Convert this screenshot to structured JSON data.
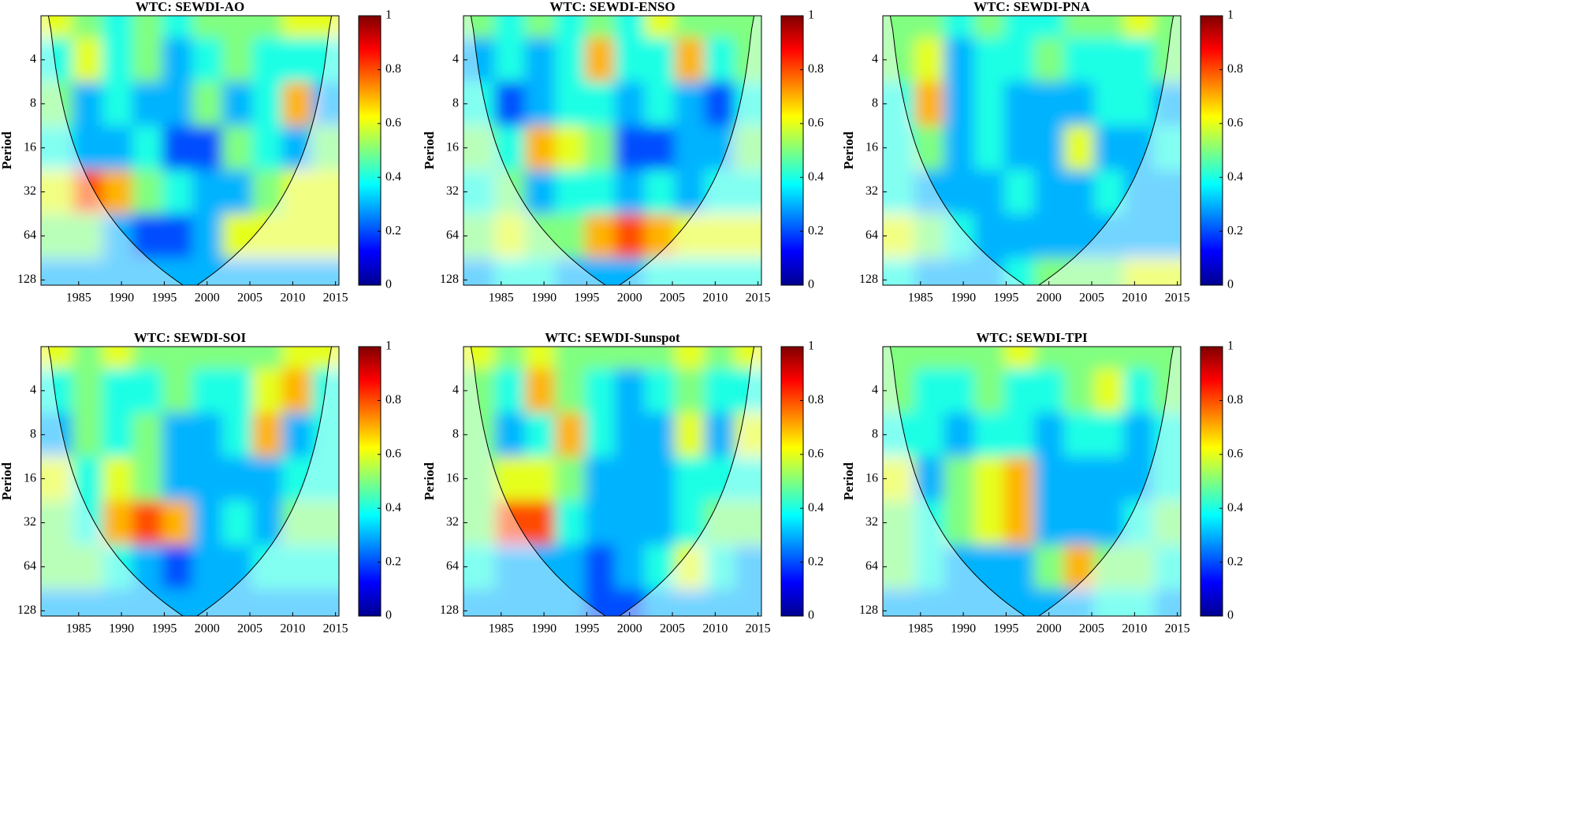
{
  "chart_data": [
    {
      "type": "heatmap",
      "title": "WTC: SEWDI-AO",
      "ylabel": "Period",
      "ylog": true,
      "colormap": "jet",
      "xlim": [
        1980.6,
        2015.4
      ],
      "xticks": [
        1985,
        1990,
        1995,
        2000,
        2005,
        2010,
        2015
      ],
      "ylim": [
        2,
        139
      ],
      "yticks": [
        4,
        8,
        16,
        32,
        64,
        128
      ],
      "x": [
        1982.5,
        1986,
        1989.5,
        1993,
        1996.5,
        2000,
        2003.5,
        2007,
        2010.5,
        2014
      ],
      "y": [
        2,
        4,
        8,
        16,
        32,
        64,
        128
      ],
      "z": [
        [
          0.6,
          0.5,
          0.4,
          0.5,
          0.4,
          0.5,
          0.5,
          0.5,
          0.6,
          0.6
        ],
        [
          0.4,
          0.6,
          0.4,
          0.5,
          0.3,
          0.4,
          0.5,
          0.4,
          0.4,
          0.4
        ],
        [
          0.5,
          0.3,
          0.4,
          0.3,
          0.3,
          0.5,
          0.3,
          0.4,
          0.7,
          0.3
        ],
        [
          0.4,
          0.3,
          0.3,
          0.4,
          0.2,
          0.2,
          0.5,
          0.4,
          0.3,
          0.5
        ],
        [
          0.6,
          0.8,
          0.7,
          0.5,
          0.4,
          0.3,
          0.3,
          0.5,
          0.6,
          0.6
        ],
        [
          0.5,
          0.5,
          0.3,
          0.2,
          0.2,
          0.3,
          0.6,
          0.6,
          0.6,
          0.6
        ],
        [
          0.3,
          0.3,
          0.3,
          0.3,
          0.3,
          0.3,
          0.3,
          0.3,
          0.3,
          0.3
        ]
      ],
      "colorbar": {
        "lim": [
          0,
          1
        ],
        "ticks": [
          0,
          0.2,
          0.4,
          0.6,
          0.8,
          1
        ]
      }
    },
    {
      "type": "heatmap",
      "title": "WTC: SEWDI-ENSO",
      "ylabel": "Period",
      "ylog": true,
      "colormap": "jet",
      "xlim": [
        1980.6,
        2015.4
      ],
      "xticks": [
        1985,
        1990,
        1995,
        2000,
        2005,
        2010,
        2015
      ],
      "ylim": [
        2,
        139
      ],
      "yticks": [
        4,
        8,
        16,
        32,
        64,
        128
      ],
      "x": [
        1982.5,
        1986,
        1989.5,
        1993,
        1996.5,
        2000,
        2003.5,
        2007,
        2010.5,
        2014
      ],
      "y": [
        2,
        4,
        8,
        16,
        32,
        64,
        128
      ],
      "z": [
        [
          0.5,
          0.4,
          0.5,
          0.4,
          0.5,
          0.4,
          0.6,
          0.5,
          0.5,
          0.5
        ],
        [
          0.3,
          0.4,
          0.3,
          0.4,
          0.7,
          0.4,
          0.4,
          0.7,
          0.4,
          0.5
        ],
        [
          0.4,
          0.2,
          0.3,
          0.4,
          0.4,
          0.3,
          0.4,
          0.3,
          0.2,
          0.4
        ],
        [
          0.5,
          0.4,
          0.7,
          0.6,
          0.5,
          0.2,
          0.2,
          0.3,
          0.3,
          0.5
        ],
        [
          0.4,
          0.5,
          0.3,
          0.4,
          0.4,
          0.3,
          0.4,
          0.3,
          0.4,
          0.4
        ],
        [
          0.5,
          0.6,
          0.5,
          0.5,
          0.7,
          0.8,
          0.7,
          0.6,
          0.6,
          0.6
        ],
        [
          0.3,
          0.4,
          0.4,
          0.3,
          0.3,
          0.3,
          0.4,
          0.4,
          0.4,
          0.4
        ]
      ],
      "colorbar": {
        "lim": [
          0,
          1
        ],
        "ticks": [
          0,
          0.2,
          0.4,
          0.6,
          0.8,
          1
        ]
      }
    },
    {
      "type": "heatmap",
      "title": "WTC: SEWDI-PNA",
      "ylabel": "Period",
      "ylog": true,
      "colormap": "jet",
      "xlim": [
        1980.6,
        2015.4
      ],
      "xticks": [
        1985,
        1990,
        1995,
        2000,
        2005,
        2010,
        2015
      ],
      "ylim": [
        2,
        139
      ],
      "yticks": [
        4,
        8,
        16,
        32,
        64,
        128
      ],
      "x": [
        1982.5,
        1986,
        1989.5,
        1993,
        1996.5,
        2000,
        2003.5,
        2007,
        2010.5,
        2014
      ],
      "y": [
        2,
        4,
        8,
        16,
        32,
        64,
        128
      ],
      "z": [
        [
          0.5,
          0.5,
          0.4,
          0.5,
          0.4,
          0.4,
          0.5,
          0.5,
          0.6,
          0.5
        ],
        [
          0.5,
          0.6,
          0.3,
          0.4,
          0.4,
          0.5,
          0.4,
          0.4,
          0.4,
          0.5
        ],
        [
          0.4,
          0.7,
          0.3,
          0.4,
          0.3,
          0.3,
          0.3,
          0.4,
          0.4,
          0.3
        ],
        [
          0.4,
          0.5,
          0.3,
          0.4,
          0.3,
          0.3,
          0.6,
          0.3,
          0.3,
          0.4
        ],
        [
          0.4,
          0.3,
          0.3,
          0.3,
          0.4,
          0.3,
          0.3,
          0.4,
          0.3,
          0.3
        ],
        [
          0.6,
          0.5,
          0.4,
          0.3,
          0.3,
          0.3,
          0.3,
          0.3,
          0.3,
          0.3
        ],
        [
          0.4,
          0.3,
          0.3,
          0.3,
          0.4,
          0.5,
          0.5,
          0.5,
          0.6,
          0.6
        ]
      ],
      "colorbar": {
        "lim": [
          0,
          1
        ],
        "ticks": [
          0,
          0.2,
          0.4,
          0.6,
          0.8,
          1
        ]
      }
    },
    {
      "type": "heatmap",
      "title": "WTC: SEWDI-SOI",
      "ylabel": "Period",
      "ylog": true,
      "colormap": "jet",
      "xlim": [
        1980.6,
        2015.4
      ],
      "xticks": [
        1985,
        1990,
        1995,
        2000,
        2005,
        2010,
        2015
      ],
      "ylim": [
        2,
        139
      ],
      "yticks": [
        4,
        8,
        16,
        32,
        64,
        128
      ],
      "x": [
        1982.5,
        1986,
        1989.5,
        1993,
        1996.5,
        2000,
        2003.5,
        2007,
        2010.5,
        2014
      ],
      "y": [
        2,
        4,
        8,
        16,
        32,
        64,
        128
      ],
      "z": [
        [
          0.6,
          0.5,
          0.6,
          0.5,
          0.5,
          0.5,
          0.5,
          0.5,
          0.6,
          0.6
        ],
        [
          0.4,
          0.5,
          0.4,
          0.4,
          0.5,
          0.4,
          0.4,
          0.6,
          0.7,
          0.4
        ],
        [
          0.3,
          0.5,
          0.4,
          0.5,
          0.3,
          0.3,
          0.4,
          0.7,
          0.3,
          0.4
        ],
        [
          0.6,
          0.4,
          0.6,
          0.5,
          0.3,
          0.3,
          0.3,
          0.3,
          0.4,
          0.4
        ],
        [
          0.5,
          0.4,
          0.7,
          0.8,
          0.7,
          0.3,
          0.4,
          0.3,
          0.5,
          0.5
        ],
        [
          0.5,
          0.5,
          0.4,
          0.3,
          0.2,
          0.3,
          0.3,
          0.4,
          0.4,
          0.4
        ],
        [
          0.3,
          0.3,
          0.3,
          0.3,
          0.3,
          0.3,
          0.3,
          0.3,
          0.3,
          0.3
        ]
      ],
      "colorbar": {
        "lim": [
          0,
          1
        ],
        "ticks": [
          0,
          0.2,
          0.4,
          0.6,
          0.8,
          1
        ]
      }
    },
    {
      "type": "heatmap",
      "title": "WTC: SEWDI-Sunspot",
      "ylabel": "Period",
      "ylog": true,
      "colormap": "jet",
      "xlim": [
        1980.6,
        2015.4
      ],
      "xticks": [
        1985,
        1990,
        1995,
        2000,
        2005,
        2010,
        2015
      ],
      "ylim": [
        2,
        139
      ],
      "yticks": [
        4,
        8,
        16,
        32,
        64,
        128
      ],
      "x": [
        1982.5,
        1986,
        1989.5,
        1993,
        1996.5,
        2000,
        2003.5,
        2007,
        2010.5,
        2014
      ],
      "y": [
        2,
        4,
        8,
        16,
        32,
        64,
        128
      ],
      "z": [
        [
          0.6,
          0.5,
          0.6,
          0.5,
          0.5,
          0.5,
          0.5,
          0.6,
          0.5,
          0.6
        ],
        [
          0.5,
          0.4,
          0.7,
          0.5,
          0.4,
          0.3,
          0.4,
          0.5,
          0.4,
          0.4
        ],
        [
          0.5,
          0.3,
          0.4,
          0.7,
          0.4,
          0.3,
          0.3,
          0.6,
          0.3,
          0.6
        ],
        [
          0.5,
          0.6,
          0.6,
          0.5,
          0.3,
          0.3,
          0.3,
          0.4,
          0.4,
          0.4
        ],
        [
          0.5,
          0.8,
          0.8,
          0.4,
          0.3,
          0.3,
          0.3,
          0.4,
          0.5,
          0.5
        ],
        [
          0.4,
          0.3,
          0.3,
          0.3,
          0.2,
          0.3,
          0.4,
          0.6,
          0.4,
          0.3
        ],
        [
          0.3,
          0.3,
          0.3,
          0.3,
          0.2,
          0.2,
          0.3,
          0.3,
          0.3,
          0.3
        ]
      ],
      "colorbar": {
        "lim": [
          0,
          1
        ],
        "ticks": [
          0,
          0.2,
          0.4,
          0.6,
          0.8,
          1
        ]
      }
    },
    {
      "type": "heatmap",
      "title": "WTC: SEWDI-TPI",
      "ylabel": "Period",
      "ylog": true,
      "colormap": "jet",
      "xlim": [
        1980.6,
        2015.4
      ],
      "xticks": [
        1985,
        1990,
        1995,
        2000,
        2005,
        2010,
        2015
      ],
      "ylim": [
        2,
        139
      ],
      "yticks": [
        4,
        8,
        16,
        32,
        64,
        128
      ],
      "x": [
        1982.5,
        1986,
        1989.5,
        1993,
        1996.5,
        2000,
        2003.5,
        2007,
        2010.5,
        2014
      ],
      "y": [
        2,
        4,
        8,
        16,
        32,
        64,
        128
      ],
      "z": [
        [
          0.5,
          0.5,
          0.5,
          0.5,
          0.6,
          0.5,
          0.5,
          0.5,
          0.5,
          0.5
        ],
        [
          0.5,
          0.4,
          0.4,
          0.5,
          0.4,
          0.4,
          0.5,
          0.6,
          0.4,
          0.5
        ],
        [
          0.4,
          0.4,
          0.3,
          0.4,
          0.4,
          0.3,
          0.4,
          0.4,
          0.3,
          0.4
        ],
        [
          0.6,
          0.3,
          0.5,
          0.6,
          0.7,
          0.3,
          0.3,
          0.3,
          0.3,
          0.4
        ],
        [
          0.5,
          0.4,
          0.5,
          0.6,
          0.7,
          0.3,
          0.3,
          0.3,
          0.4,
          0.5
        ],
        [
          0.5,
          0.4,
          0.3,
          0.3,
          0.3,
          0.5,
          0.7,
          0.5,
          0.5,
          0.4
        ],
        [
          0.3,
          0.3,
          0.3,
          0.3,
          0.3,
          0.3,
          0.3,
          0.4,
          0.4,
          0.3
        ]
      ],
      "colorbar": {
        "lim": [
          0,
          1
        ],
        "ticks": [
          0,
          0.2,
          0.4,
          0.6,
          0.8,
          1
        ]
      }
    }
  ]
}
